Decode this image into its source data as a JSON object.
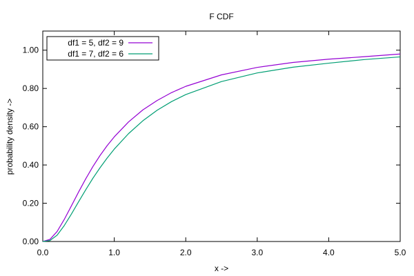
{
  "chart_data": {
    "type": "line",
    "title": "F CDF",
    "xlabel": "x ->",
    "ylabel": "probability density ->",
    "xlim": [
      0,
      5
    ],
    "ylim": [
      0,
      1.1
    ],
    "grid": false,
    "legend_position": "top-left",
    "x_ticks": [
      {
        "value": 0,
        "label": "0.0"
      },
      {
        "value": 1,
        "label": "1.0"
      },
      {
        "value": 2,
        "label": "2.0"
      },
      {
        "value": 3,
        "label": "3.0"
      },
      {
        "value": 4,
        "label": "4.0"
      },
      {
        "value": 5,
        "label": "5.0"
      }
    ],
    "y_ticks": [
      {
        "value": 0,
        "label": "0.00"
      },
      {
        "value": 0.2,
        "label": "0.20"
      },
      {
        "value": 0.4,
        "label": "0.40"
      },
      {
        "value": 0.6,
        "label": "0.60"
      },
      {
        "value": 0.8,
        "label": "0.80"
      },
      {
        "value": 1.0,
        "label": "1.00"
      }
    ],
    "x": [
      0,
      0.1,
      0.2,
      0.3,
      0.4,
      0.5,
      0.6,
      0.7,
      0.8,
      0.9,
      1.0,
      1.2,
      1.4,
      1.6,
      1.8,
      2.0,
      2.5,
      3.0,
      3.5,
      4.0,
      4.5,
      5.0
    ],
    "series": [
      {
        "name": "df1 = 5, df2 = 9",
        "color": "#9400d3",
        "values": [
          0,
          0.011,
          0.052,
          0.115,
          0.186,
          0.258,
          0.327,
          0.391,
          0.449,
          0.501,
          0.547,
          0.625,
          0.688,
          0.737,
          0.778,
          0.811,
          0.871,
          0.91,
          0.936,
          0.953,
          0.966,
          0.98
        ]
      },
      {
        "name": "df1 = 7, df2 = 6",
        "color": "#009e73",
        "values": [
          0,
          0.005,
          0.033,
          0.083,
          0.143,
          0.207,
          0.27,
          0.33,
          0.385,
          0.436,
          0.483,
          0.564,
          0.631,
          0.686,
          0.731,
          0.768,
          0.836,
          0.881,
          0.911,
          0.932,
          0.951,
          0.965
        ]
      }
    ]
  }
}
